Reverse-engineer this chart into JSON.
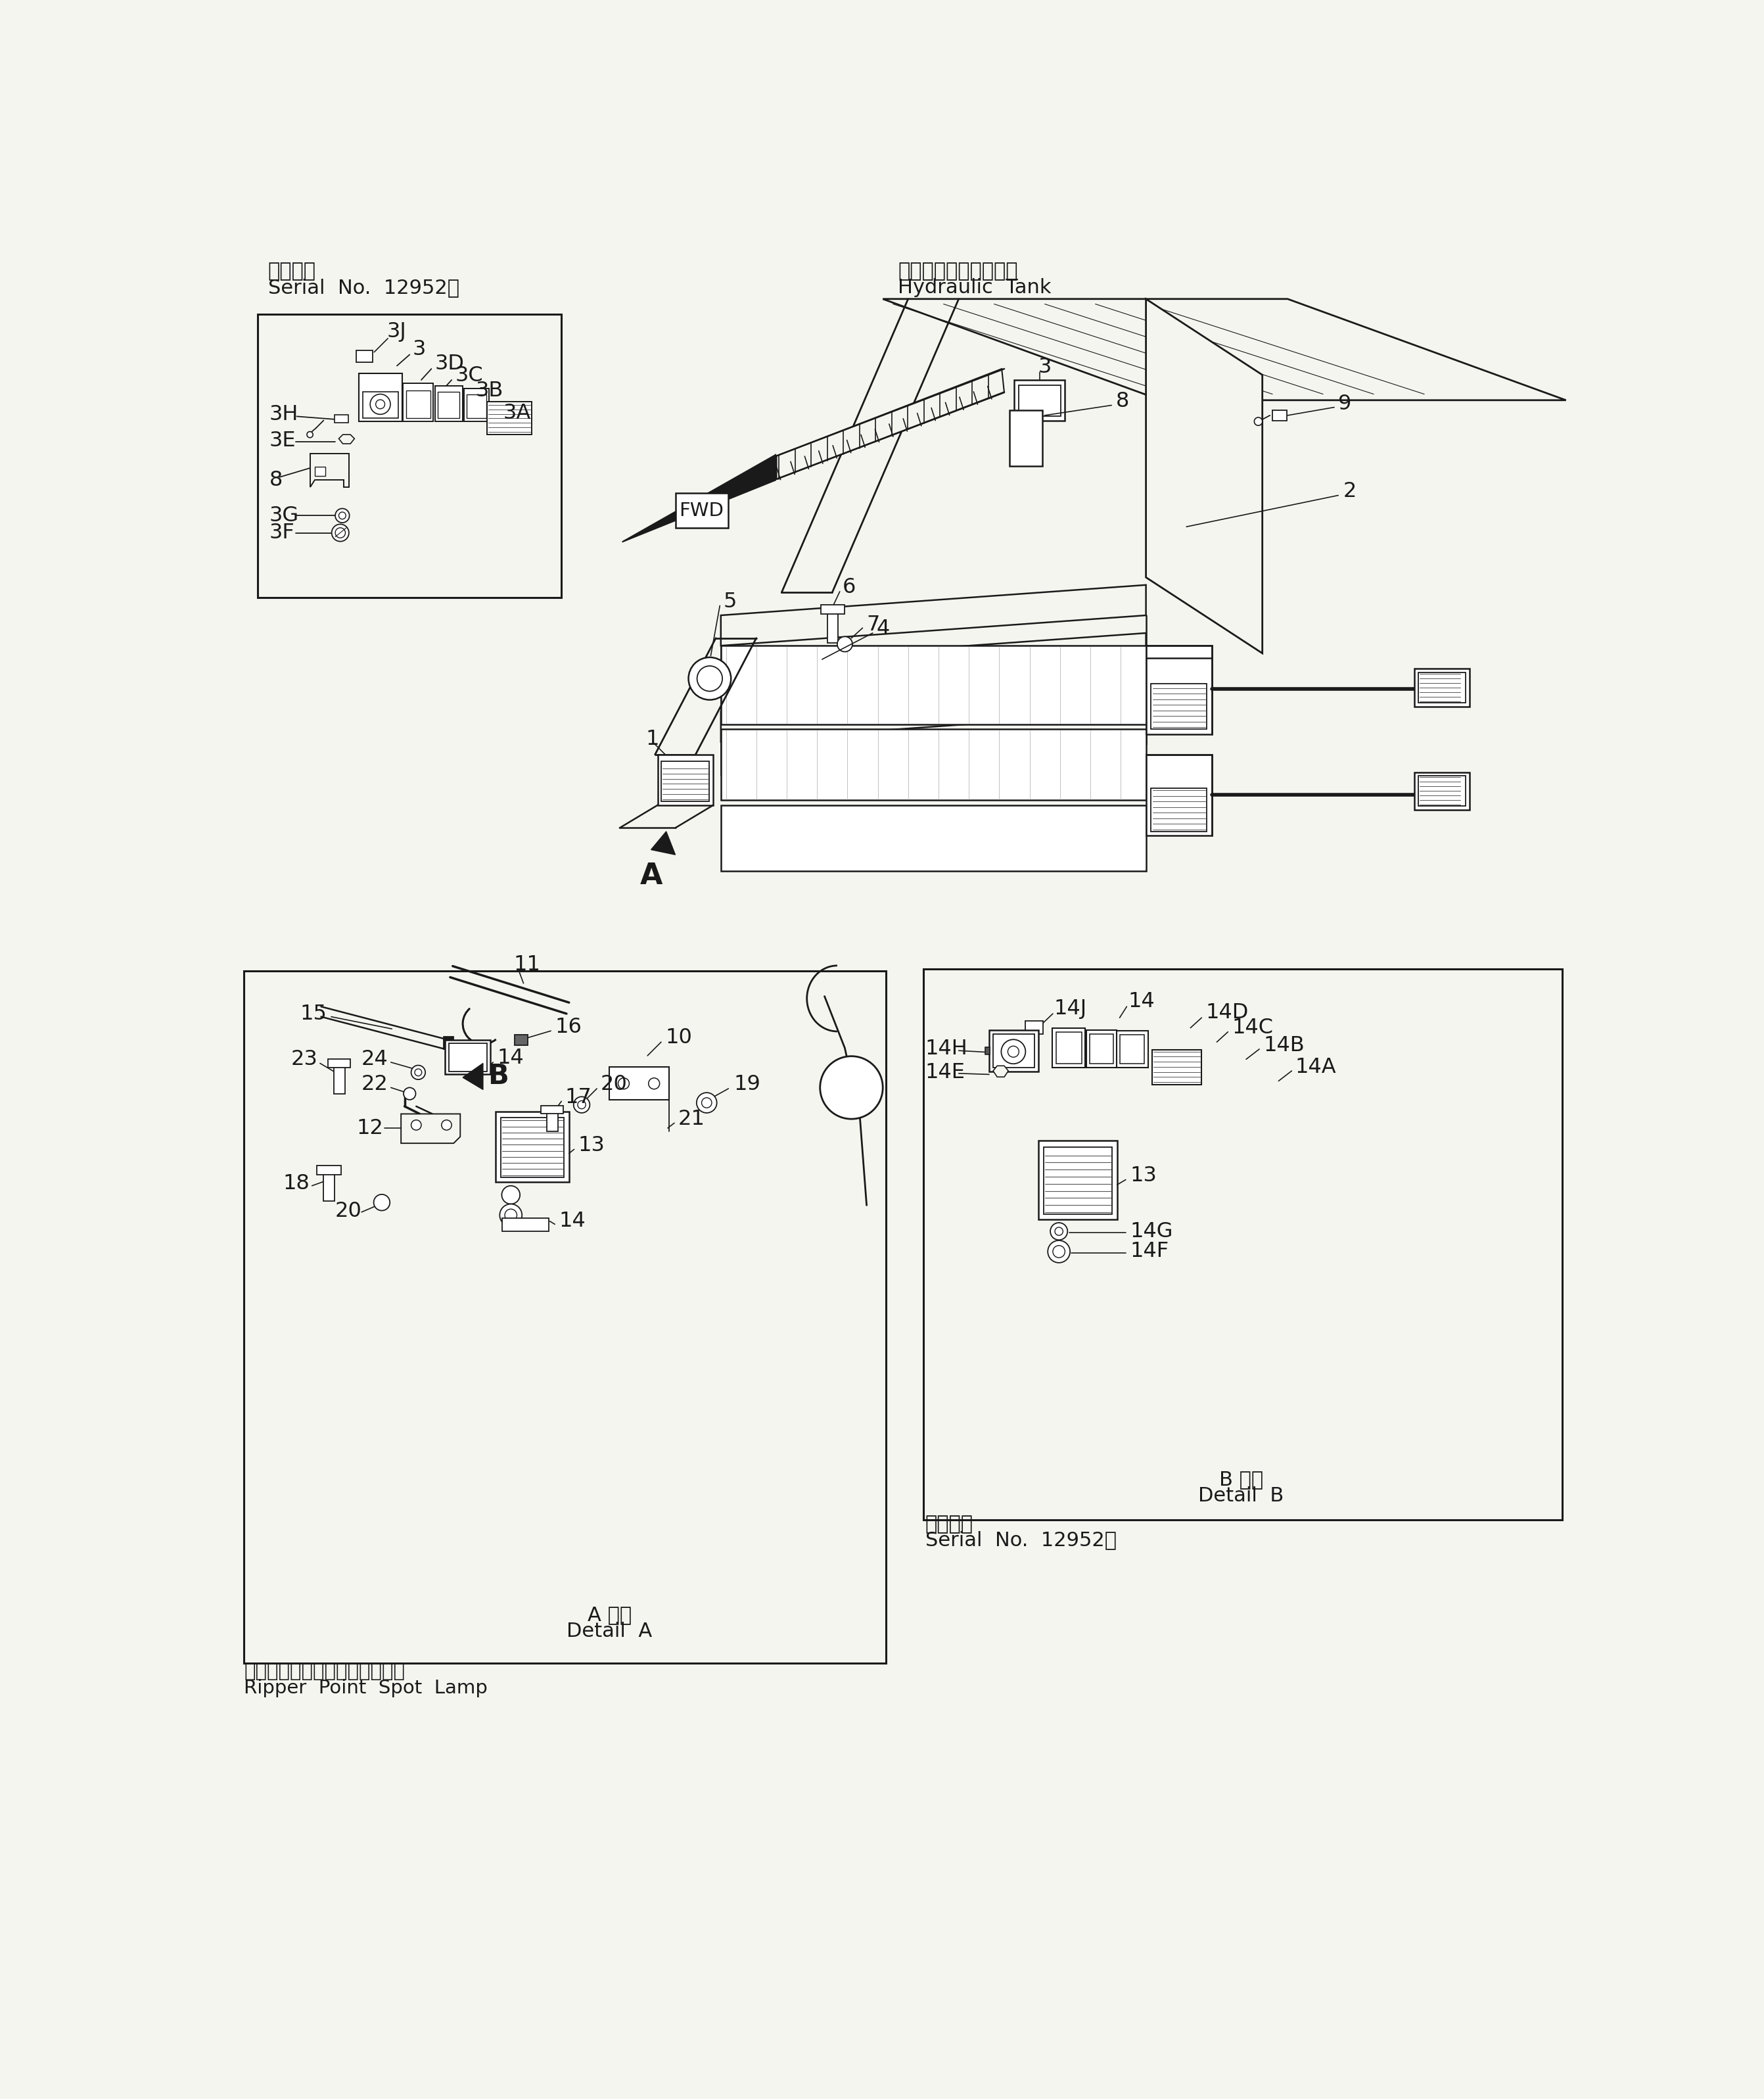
{
  "bg_color": "#f5f5f0",
  "line_color": "#1a1a1a",
  "fig_width": 26.84,
  "fig_height": 31.93,
  "title_jp": "適用号機",
  "title_serial": "Serial  No.  12952～",
  "hydraulic_tank_jp": "ハイドロリックタンク",
  "hydraulic_tank_en": "Hydraulic  Tank",
  "detail_a_jp": "A 詳細",
  "detail_a_en": "Detail  A",
  "detail_b_jp": "B 詳細",
  "detail_b_en": "Detail  B",
  "ripper_jp": "リッパポイントスポットランプ",
  "ripper_en": "Ripper  Point  Spot  Lamp",
  "serial_b_jp": "適用号機",
  "serial_b_en": "Serial  No.  12952～"
}
